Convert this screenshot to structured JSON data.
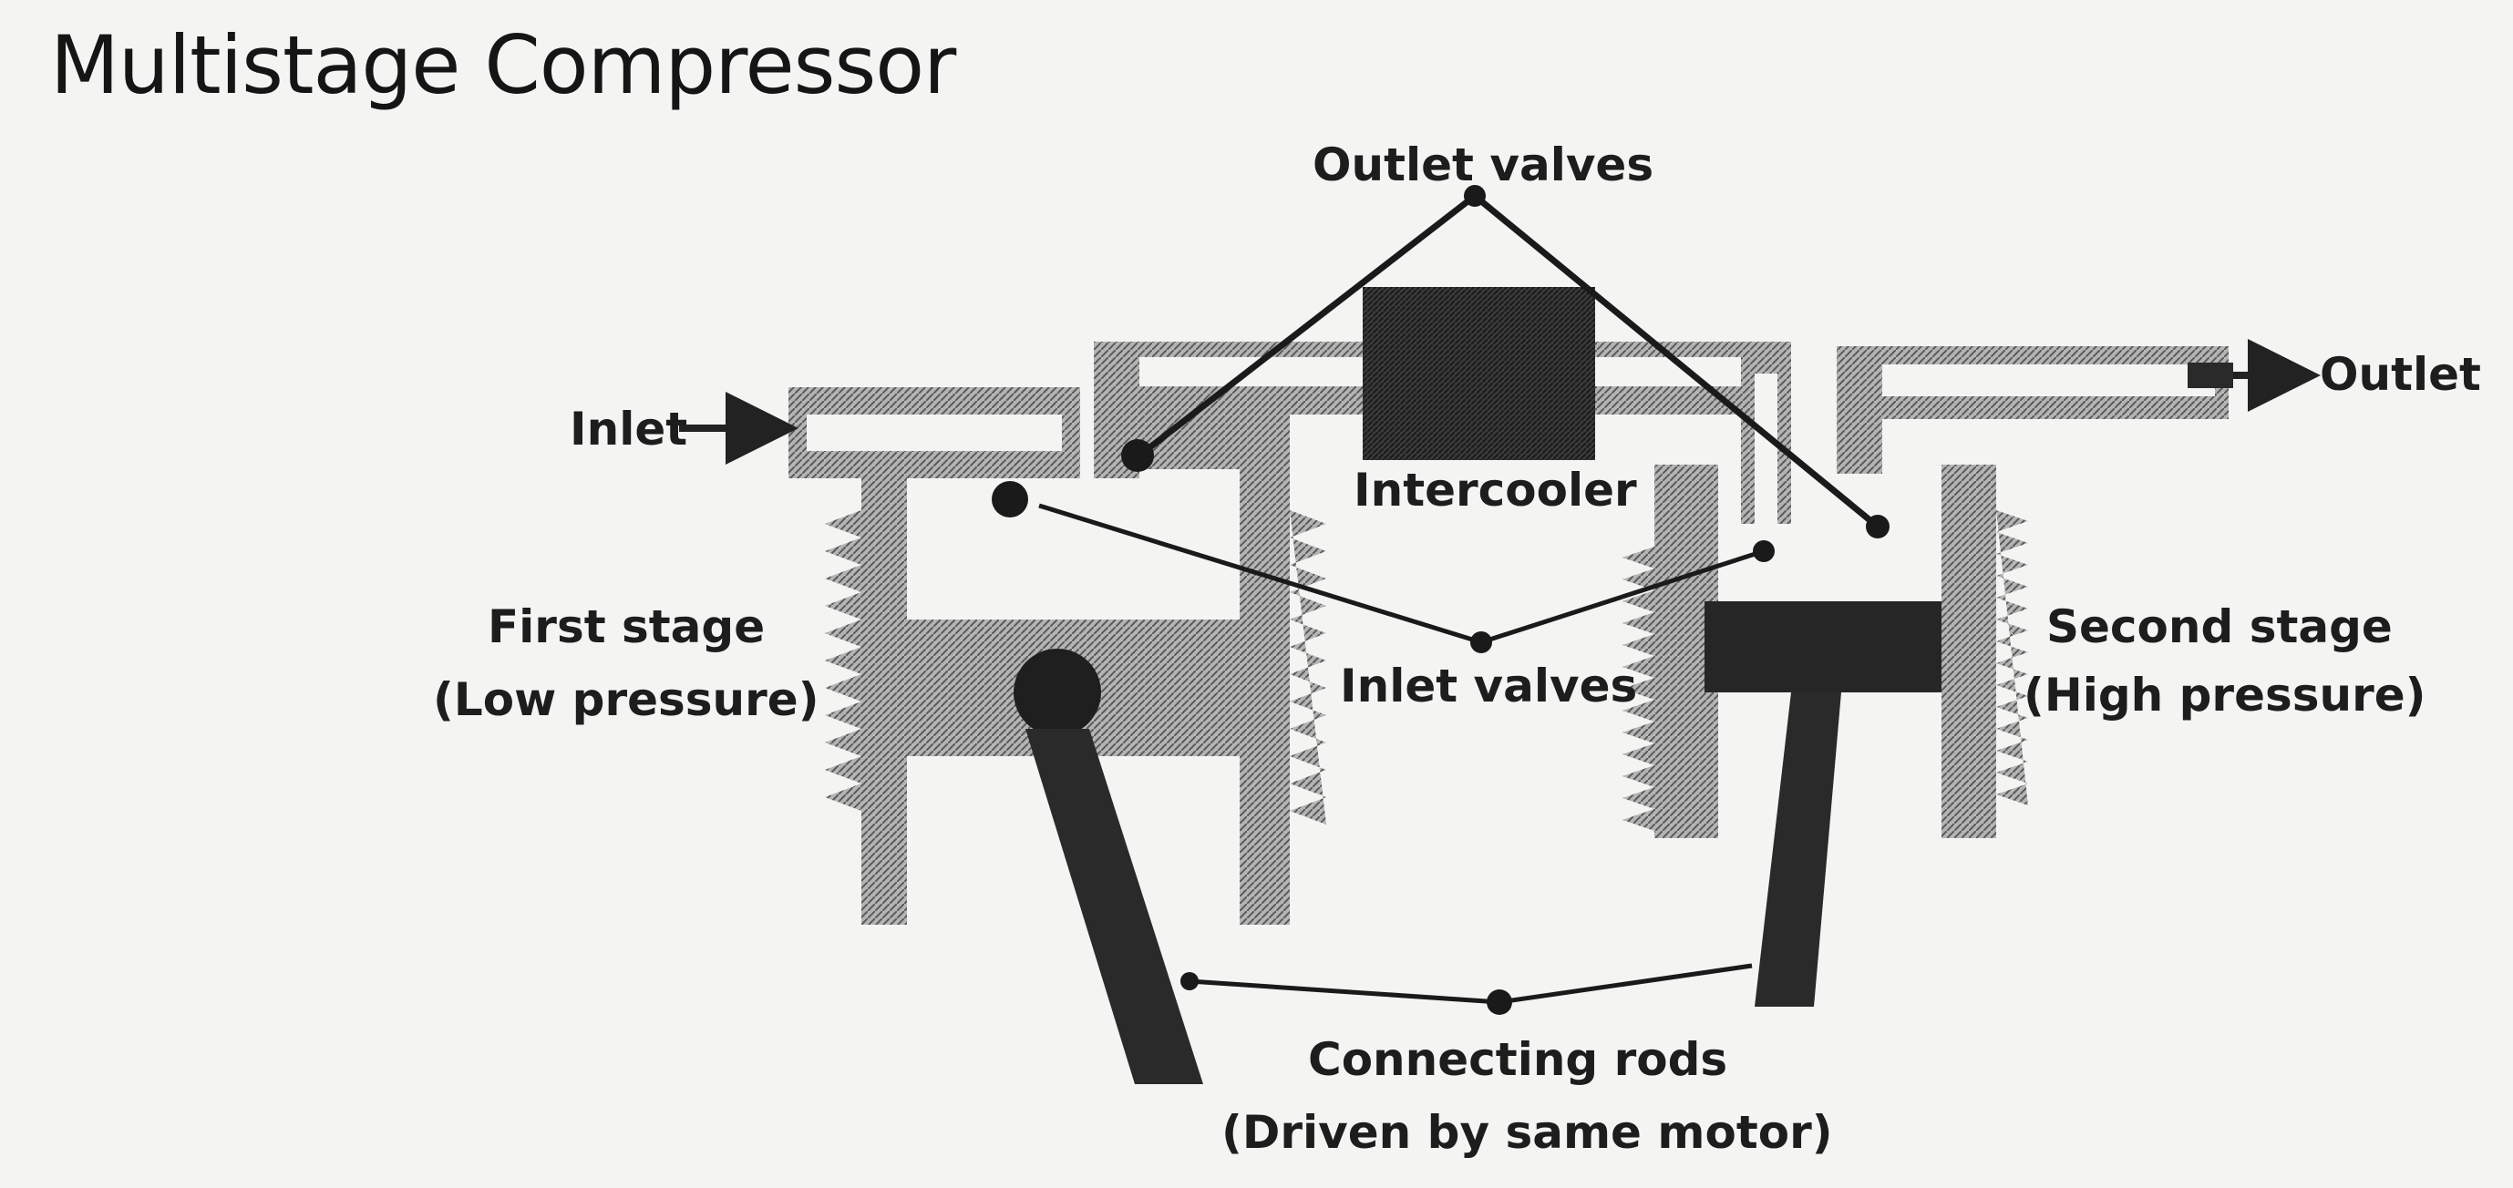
{
  "title": "Multistage Compressor",
  "labels": {
    "outlet_valves": "Outlet valves",
    "inlet": "Inlet",
    "outlet": "Outlet",
    "intercooler": "Intercooler",
    "first_stage_line1": "First stage",
    "first_stage_line2": "(Low pressure)",
    "inlet_valves": "Inlet valves",
    "second_stage_line1": "Second stage",
    "second_stage_line2": "(High pressure)",
    "connecting_rods_line1": "Connecting rods",
    "connecting_rods_line2": "(Driven by same motor)"
  },
  "colors": {
    "hatch": "#9a9a9a",
    "dark": "#2a2a2a",
    "background": "#f4f4f2"
  }
}
